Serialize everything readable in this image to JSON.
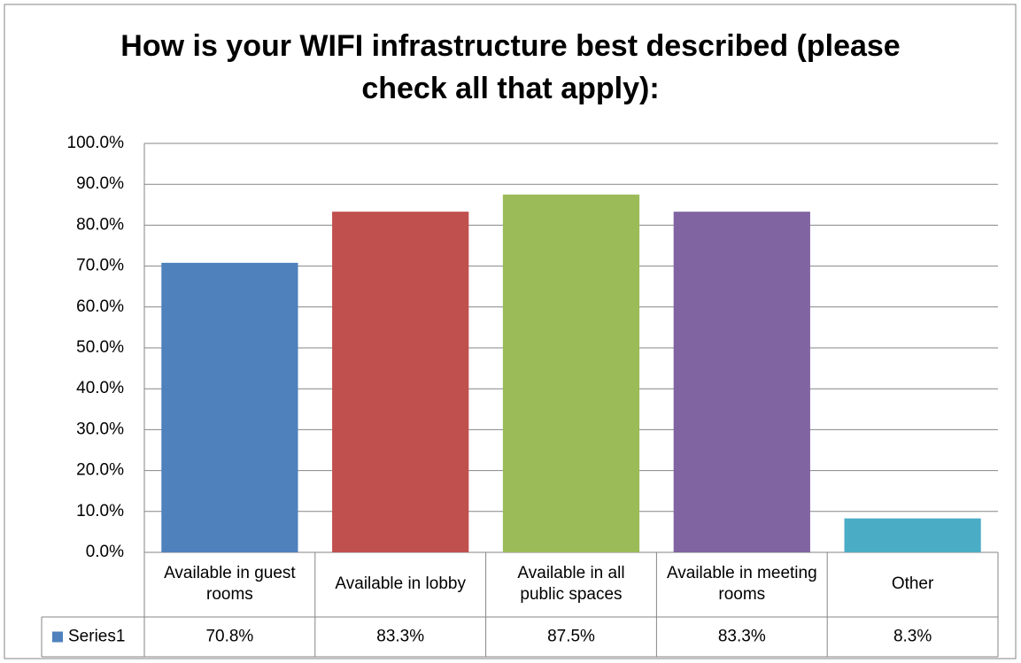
{
  "chart_data": {
    "type": "bar",
    "title": "How is your WIFI infrastructure best described (please check all that apply):",
    "categories": [
      "Available in guest rooms",
      "Available in lobby",
      "Available in all public spaces",
      "Available in meeting rooms",
      "Other"
    ],
    "series": [
      {
        "name": "Series1",
        "color": "#4f81bd",
        "point_colors": [
          "#4f81bd",
          "#c0504d",
          "#9bbb59",
          "#8064a2",
          "#4bacc6"
        ],
        "values": [
          70.8,
          83.3,
          87.5,
          83.3,
          8.3
        ],
        "value_labels": [
          "70.8%",
          "83.3%",
          "87.5%",
          "83.3%",
          "8.3%"
        ]
      }
    ],
    "ylim": [
      0,
      100
    ],
    "yticks": [
      {
        "value": 0,
        "label": "0.0%"
      },
      {
        "value": 10,
        "label": "10.0%"
      },
      {
        "value": 20,
        "label": "20.0%"
      },
      {
        "value": 30,
        "label": "30.0%"
      },
      {
        "value": 40,
        "label": "40.0%"
      },
      {
        "value": 50,
        "label": "50.0%"
      },
      {
        "value": 60,
        "label": "60.0%"
      },
      {
        "value": 70,
        "label": "70.0%"
      },
      {
        "value": 80,
        "label": "80.0%"
      },
      {
        "value": 90,
        "label": "90.0%"
      },
      {
        "value": 100,
        "label": "100.0%"
      }
    ],
    "grid": true,
    "data_table": true
  }
}
